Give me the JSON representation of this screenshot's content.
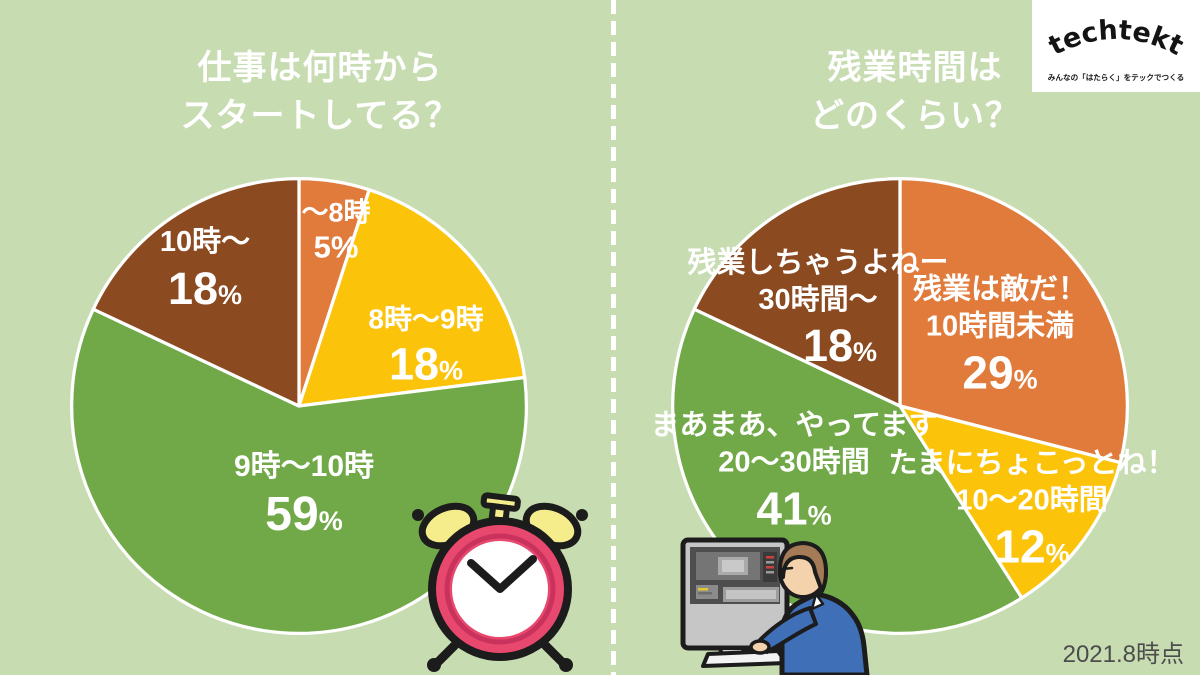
{
  "page": {
    "background_color": "#c8dcb2",
    "footer_note": "2021.8時点"
  },
  "units": {
    "percent": "%"
  },
  "logo": {
    "brand": "techtekt",
    "tagline": "みんなの「はたらく」をテックでつくる"
  },
  "illustrations": {
    "left_chart": "alarm-clock",
    "right_chart": "person-at-computer"
  },
  "chart_data": [
    {
      "type": "pie",
      "title": "仕事は何時からスタートしてる？",
      "title_lines": [
        "仕事は何時から",
        "スタートしてる？"
      ],
      "labels": [
        "～8時",
        "8時～9時",
        "9時～10時",
        "10時～"
      ],
      "values": [
        5,
        18,
        59,
        18
      ],
      "colors": [
        "#e17b3b",
        "#fcc30b",
        "#71a848",
        "#8b4a20"
      ],
      "start_angle_deg": 0,
      "direction": "clockwise",
      "value_suffix": "%"
    },
    {
      "type": "pie",
      "title": "残業時間はどのくらい？",
      "title_lines": [
        "残業時間は",
        "どのくらい？"
      ],
      "labels": [
        "残業は敵だ！10時間未満",
        "たまにちょこっとね！10～20時間",
        "まあまあ、やってます20～30時間",
        "残業しちゃうよねー30時間～"
      ],
      "label_lines": [
        [
          "残業は敵だ！",
          "10時間未満"
        ],
        [
          "たまにちょこっとね！",
          "10～20時間"
        ],
        [
          "まあまあ、やってます",
          "20～30時間"
        ],
        [
          "残業しちゃうよねー",
          "30時間～"
        ]
      ],
      "values": [
        29,
        12,
        41,
        18
      ],
      "colors": [
        "#e17b3b",
        "#fcc30b",
        "#71a848",
        "#8b4a20"
      ],
      "start_angle_deg": 0,
      "direction": "clockwise",
      "value_suffix": "%"
    }
  ]
}
